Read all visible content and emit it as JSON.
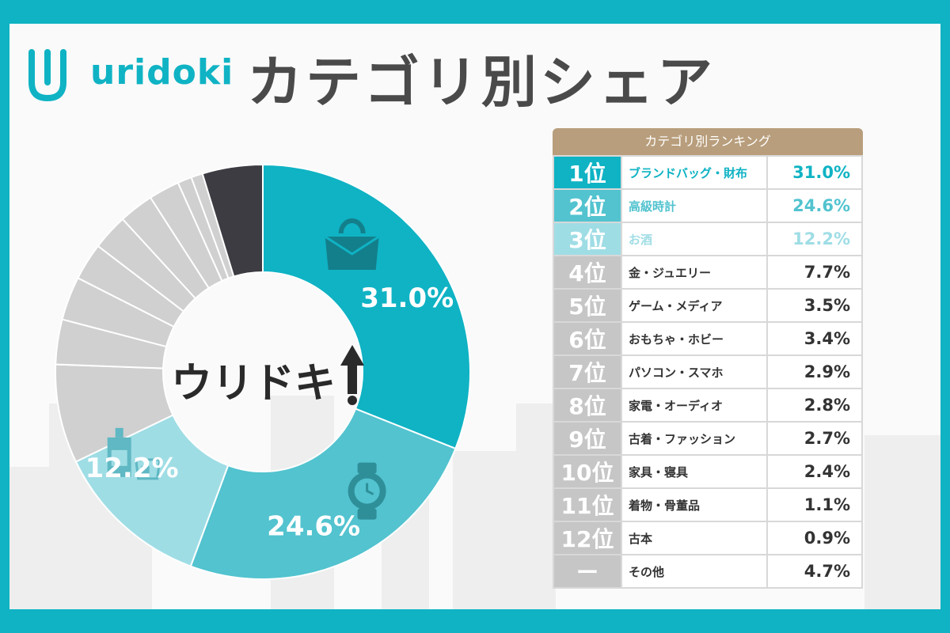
{
  "header": {
    "logo_text": "uridoki",
    "title": "カテゴリ別シェア"
  },
  "ranking": {
    "header": "カテゴリ別ランキング",
    "rows": [
      {
        "rank": "1位",
        "name": "ブランドバッグ・財布",
        "value": "31.0%"
      },
      {
        "rank": "2位",
        "name": "高級時計",
        "value": "24.6%"
      },
      {
        "rank": "3位",
        "name": "お酒",
        "value": "12.2%"
      },
      {
        "rank": "4位",
        "name": "金・ジュエリー",
        "value": "7.7%"
      },
      {
        "rank": "5位",
        "name": "ゲーム・メディア",
        "value": "3.5%"
      },
      {
        "rank": "6位",
        "name": "おもちゃ・ホビー",
        "value": "3.4%"
      },
      {
        "rank": "7位",
        "name": "パソコン・スマホ",
        "value": "2.9%"
      },
      {
        "rank": "8位",
        "name": "家電・オーディオ",
        "value": "2.8%"
      },
      {
        "rank": "9位",
        "name": "古着・ファッション",
        "value": "2.7%"
      },
      {
        "rank": "10位",
        "name": "家具・寝具",
        "value": "2.4%"
      },
      {
        "rank": "11位",
        "name": "着物・骨董品",
        "value": "1.1%"
      },
      {
        "rank": "12位",
        "name": "古本",
        "value": "0.9%"
      },
      {
        "rank": "ー",
        "name": "その他",
        "value": "4.7%"
      }
    ]
  },
  "chart_data": {
    "type": "pie",
    "style": "donut",
    "center_label": "ウリドキ",
    "categories": [
      "ブランドバッグ・財布",
      "高級時計",
      "お酒",
      "金・ジュエリー",
      "ゲーム・メディア",
      "おもちゃ・ホビー",
      "パソコン・スマホ",
      "家電・オーディオ",
      "古着・ファッション",
      "家具・寝具",
      "着物・骨董品",
      "古本",
      "その他"
    ],
    "values": [
      31.0,
      24.6,
      12.2,
      7.7,
      3.5,
      3.4,
      2.9,
      2.8,
      2.7,
      2.4,
      1.1,
      0.9,
      4.7
    ],
    "slice_labels": [
      "31.0%",
      "24.6%",
      "12.2%",
      "",
      "",
      "",
      "",
      "",
      "",
      "",
      "",
      "",
      ""
    ],
    "slice_icons": [
      "handbag-icon",
      "watch-icon",
      "bottle-glass-icon"
    ]
  },
  "colors": {
    "brand": "#0fb3c4",
    "rank1": "#0fb3c4",
    "rank2": "#52c3cf",
    "rank3": "#9fdde5",
    "rank_other": "#c6c6c6",
    "other_slice": "#3d3c42",
    "gray_slice": "#d0d0d0",
    "table_header": "#b89e7c"
  }
}
